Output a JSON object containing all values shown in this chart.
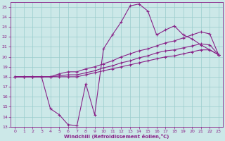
{
  "xlabel": "Windchill (Refroidissement éolien,°C)",
  "xlim": [
    -0.5,
    23.5
  ],
  "ylim": [
    13,
    25.5
  ],
  "xticks": [
    0,
    1,
    2,
    3,
    4,
    5,
    6,
    7,
    8,
    9,
    10,
    11,
    12,
    13,
    14,
    15,
    16,
    17,
    18,
    19,
    20,
    21,
    22,
    23
  ],
  "yticks": [
    13,
    14,
    15,
    16,
    17,
    18,
    19,
    20,
    21,
    22,
    23,
    24,
    25
  ],
  "bg_color": "#cce8e8",
  "line_color": "#882288",
  "grid_color": "#99cccc",
  "line1_x": [
    0,
    1,
    2,
    3,
    4,
    5,
    6,
    7,
    8,
    9,
    10,
    11,
    12,
    13,
    14,
    15,
    16,
    17,
    18,
    19,
    20,
    21,
    22,
    23
  ],
  "line1_y": [
    18,
    18,
    18,
    18,
    14.8,
    14.2,
    13.2,
    13.1,
    17.3,
    14.2,
    20.8,
    22.2,
    23.5,
    25.1,
    25.3,
    24.6,
    22.2,
    22.7,
    23.1,
    22.2,
    21.8,
    21.2,
    20.7,
    20.2
  ],
  "line2_x": [
    0,
    1,
    2,
    3,
    4,
    5,
    6,
    7,
    8,
    9,
    10,
    11,
    12,
    13,
    14,
    15,
    16,
    17,
    18,
    19,
    20,
    21,
    22,
    23
  ],
  "line2_y": [
    18,
    18,
    18,
    18,
    18,
    18.3,
    18.5,
    18.5,
    18.8,
    19.0,
    19.3,
    19.6,
    20.0,
    20.3,
    20.6,
    20.8,
    21.1,
    21.4,
    21.6,
    21.9,
    22.2,
    22.5,
    22.3,
    20.2
  ],
  "line3_x": [
    0,
    1,
    2,
    3,
    4,
    5,
    6,
    7,
    8,
    9,
    10,
    11,
    12,
    13,
    14,
    15,
    16,
    17,
    18,
    19,
    20,
    21,
    22,
    23
  ],
  "line3_y": [
    18,
    18,
    18,
    18,
    18,
    18.1,
    18.2,
    18.2,
    18.4,
    18.6,
    18.9,
    19.1,
    19.4,
    19.6,
    19.9,
    20.1,
    20.4,
    20.6,
    20.7,
    20.9,
    21.1,
    21.3,
    21.2,
    20.2
  ],
  "line4_x": [
    0,
    1,
    2,
    3,
    4,
    5,
    6,
    7,
    8,
    9,
    10,
    11,
    12,
    13,
    14,
    15,
    16,
    17,
    18,
    19,
    20,
    21,
    22,
    23
  ],
  "line4_y": [
    18,
    18,
    18,
    18,
    18,
    18,
    18,
    18,
    18.2,
    18.4,
    18.6,
    18.8,
    19.0,
    19.2,
    19.4,
    19.6,
    19.8,
    20.0,
    20.1,
    20.3,
    20.5,
    20.7,
    20.7,
    20.2
  ]
}
